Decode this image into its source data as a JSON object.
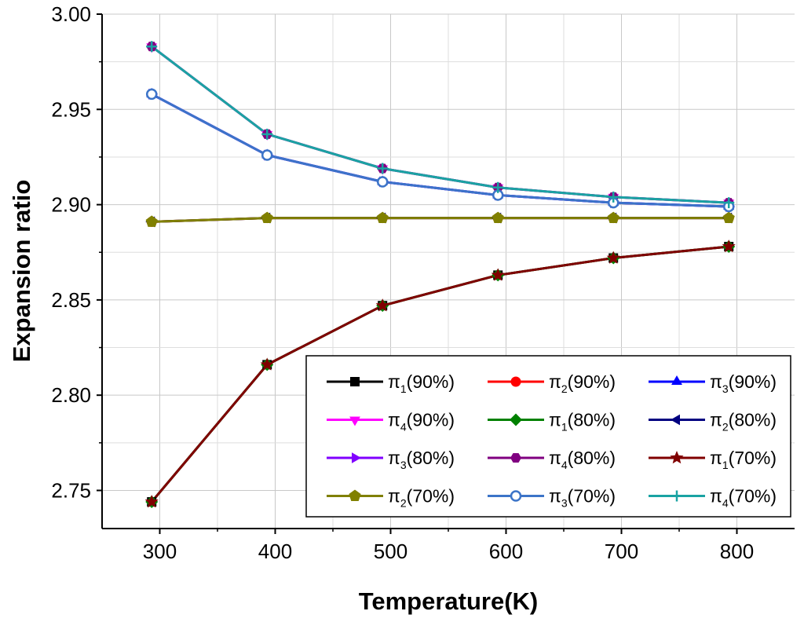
{
  "chart_data": {
    "type": "line",
    "title": "",
    "xlabel": "Temperature(K)",
    "ylabel": "Expansion ratio",
    "xlim": [
      250,
      850
    ],
    "ylim": [
      2.73,
      3.0
    ],
    "xticks": [
      300,
      400,
      500,
      600,
      700,
      800
    ],
    "yticks": [
      2.75,
      2.8,
      2.85,
      2.9,
      2.95,
      3.0
    ],
    "xtick_labels": [
      "300",
      "400",
      "500",
      "600",
      "700",
      "800"
    ],
    "ytick_labels": [
      "2.75",
      "2.80",
      "2.85",
      "2.90",
      "2.95",
      "3.00"
    ],
    "grid": true,
    "legend_position": "bottom-right",
    "x": [
      293,
      393,
      493,
      593,
      693,
      793
    ],
    "series": [
      {
        "name": "π1(90%)",
        "base": "π",
        "sub": "1",
        "suffix": "(90%)",
        "color": "#000000",
        "marker": "square",
        "values": [
          2.744,
          2.816,
          2.847,
          2.863,
          2.872,
          2.878
        ]
      },
      {
        "name": "π2(90%)",
        "base": "π",
        "sub": "2",
        "suffix": "(90%)",
        "color": "#ff0000",
        "marker": "circle",
        "values": [
          2.891,
          2.893,
          2.893,
          2.893,
          2.893,
          2.893
        ]
      },
      {
        "name": "π3(90%)",
        "base": "π",
        "sub": "3",
        "suffix": "(90%)",
        "color": "#0000ff",
        "marker": "triangle-up",
        "values": [
          2.958,
          2.926,
          2.912,
          2.905,
          2.901,
          2.899
        ]
      },
      {
        "name": "π4(90%)",
        "base": "π",
        "sub": "4",
        "suffix": "(90%)",
        "color": "#ff00ff",
        "marker": "triangle-down",
        "values": [
          2.983,
          2.937,
          2.919,
          2.909,
          2.904,
          2.901
        ]
      },
      {
        "name": "π1(80%)",
        "base": "π",
        "sub": "1",
        "suffix": "(80%)",
        "color": "#008000",
        "marker": "diamond",
        "values": [
          2.744,
          2.816,
          2.847,
          2.863,
          2.872,
          2.878
        ]
      },
      {
        "name": "π2(80%)",
        "base": "π",
        "sub": "2",
        "suffix": "(80%)",
        "color": "#000080",
        "marker": "triangle-left",
        "values": [
          2.891,
          2.893,
          2.893,
          2.893,
          2.893,
          2.893
        ]
      },
      {
        "name": "π3(80%)",
        "base": "π",
        "sub": "3",
        "suffix": "(80%)",
        "color": "#8000ff",
        "marker": "triangle-right",
        "values": [
          2.958,
          2.926,
          2.912,
          2.905,
          2.901,
          2.899
        ]
      },
      {
        "name": "π4(80%)",
        "base": "π",
        "sub": "4",
        "suffix": "(80%)",
        "color": "#800080",
        "marker": "hexagon",
        "values": [
          2.983,
          2.937,
          2.919,
          2.909,
          2.904,
          2.901
        ]
      },
      {
        "name": "π1(70%)",
        "base": "π",
        "sub": "1",
        "suffix": "(70%)",
        "color": "#800000",
        "marker": "star",
        "values": [
          2.744,
          2.816,
          2.847,
          2.863,
          2.872,
          2.878
        ]
      },
      {
        "name": "π2(70%)",
        "base": "π",
        "sub": "2",
        "suffix": "(70%)",
        "color": "#808000",
        "marker": "pentagon",
        "values": [
          2.891,
          2.893,
          2.893,
          2.893,
          2.893,
          2.893
        ]
      },
      {
        "name": "π3(70%)",
        "base": "π",
        "sub": "3",
        "suffix": "(70%)",
        "color": "#3c74c8",
        "marker": "circle-open",
        "values": [
          2.958,
          2.926,
          2.912,
          2.905,
          2.901,
          2.899
        ]
      },
      {
        "name": "π4(70%)",
        "base": "π",
        "sub": "4",
        "suffix": "(70%)",
        "color": "#1aa3a3",
        "marker": "plus",
        "values": [
          2.983,
          2.937,
          2.919,
          2.909,
          2.904,
          2.901
        ]
      }
    ]
  }
}
